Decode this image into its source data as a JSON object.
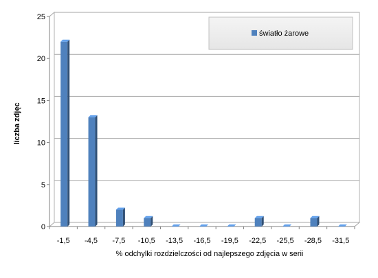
{
  "chart_data": {
    "type": "bar",
    "categories": [
      "-1,5",
      "-4,5",
      "-7,5",
      "-10,5",
      "-13,5",
      "-16,5",
      "-19,5",
      "-22,5",
      "-25,5",
      "-28,5",
      "-31,5"
    ],
    "series": [
      {
        "name": "światło żarowe",
        "values": [
          22,
          13,
          2,
          1,
          0,
          0,
          0,
          1,
          0,
          1,
          0
        ],
        "color": "#4f81bd"
      }
    ],
    "title": "",
    "xlabel": "% odchylki  rozdzielczości  od najlepszego  zdjęcia  w serii",
    "ylabel": "liczba zdjęc",
    "ylim": [
      0,
      25
    ],
    "yticks": [
      "0",
      "5",
      "10",
      "15",
      "20",
      "25"
    ],
    "grid": true,
    "legend": "top-right",
    "style": "3d-column"
  }
}
